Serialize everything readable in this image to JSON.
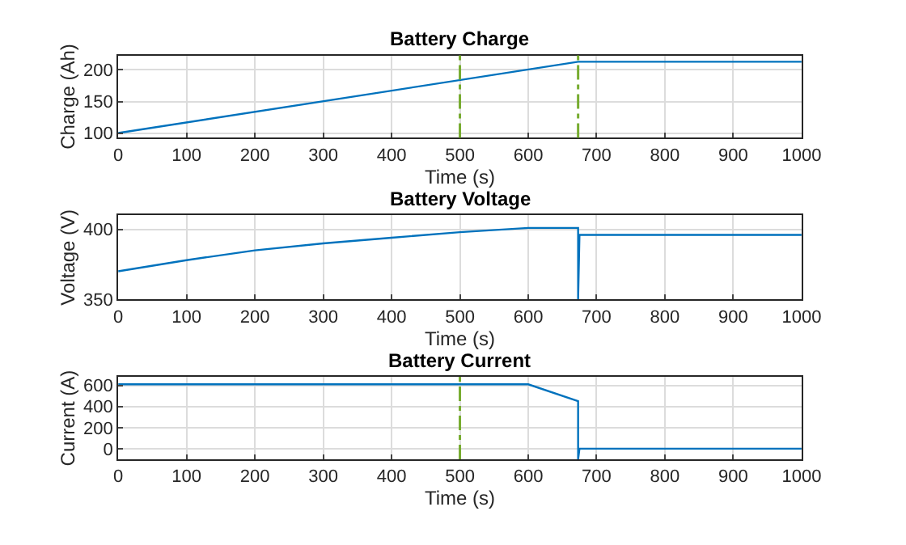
{
  "chart_data": [
    {
      "type": "line",
      "title": "Battery Charge",
      "xlabel": "Time (s)",
      "ylabel": "Charge (Ah)",
      "x": [
        0,
        673,
        1000
      ],
      "series": [
        {
          "color": "#0072bd",
          "values": [
            100,
            213,
            213
          ]
        }
      ],
      "xlim": [
        0,
        1000
      ],
      "xticks": [
        0,
        100,
        200,
        300,
        400,
        500,
        600,
        700,
        800,
        900,
        1000
      ],
      "ylim": [
        92.5,
        223
      ],
      "yticks": [
        100,
        150,
        200
      ],
      "grid": true,
      "ref_lines": [
        {
          "axis": "x",
          "value": 500,
          "color": "#77ac30",
          "line_style": "dashed"
        },
        {
          "axis": "x",
          "value": 673,
          "color": "#77ac30",
          "line_style": "dashed"
        }
      ]
    },
    {
      "type": "line",
      "title": "Battery Voltage",
      "xlabel": "Time (s)",
      "ylabel": "Voltage (V)",
      "x": [
        0,
        100,
        200,
        300,
        400,
        500,
        600,
        673,
        673,
        675,
        1000
      ],
      "series": [
        {
          "color": "#0072bd",
          "values": [
            370,
            378,
            385,
            390,
            394,
            398,
            401,
            401,
            350,
            396,
            396
          ]
        }
      ],
      "xlim": [
        0,
        1000
      ],
      "xticks": [
        0,
        100,
        200,
        300,
        400,
        500,
        600,
        700,
        800,
        900,
        1000
      ],
      "ylim": [
        350,
        410
      ],
      "yticks": [
        350,
        400
      ],
      "grid": true
    },
    {
      "type": "line",
      "title": "Battery Current",
      "xlabel": "Time (s)",
      "ylabel": "Current (A)",
      "x": [
        0,
        600,
        673,
        673,
        675,
        1000
      ],
      "series": [
        {
          "color": "#0072bd",
          "values": [
            610,
            610,
            450,
            -100,
            0,
            0
          ]
        }
      ],
      "xlim": [
        0,
        1000
      ],
      "xticks": [
        0,
        100,
        200,
        300,
        400,
        500,
        600,
        700,
        800,
        900,
        1000
      ],
      "ylim": [
        -100,
        680
      ],
      "yticks": [
        0,
        200,
        400,
        600
      ],
      "grid": true,
      "ref_lines": [
        {
          "axis": "x",
          "value": 500,
          "color": "#77ac30",
          "line_style": "dashed"
        }
      ]
    }
  ]
}
